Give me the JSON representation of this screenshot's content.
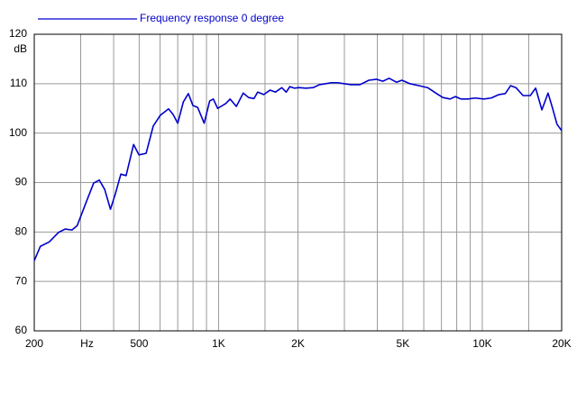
{
  "chart_data": {
    "type": "line",
    "x_scale": "log",
    "y_label": "dB",
    "legend": "top-left",
    "grid": true,
    "xlim": [
      200,
      20000
    ],
    "ylim": [
      60,
      120
    ],
    "xticks": [
      200,
      {
        "value": 300,
        "label": "Hz"
      },
      500,
      {
        "value": 1000,
        "label": "1K"
      },
      {
        "value": 2000,
        "label": "2K"
      },
      {
        "value": 5000,
        "label": "5K"
      },
      {
        "value": 10000,
        "label": "10K"
      },
      {
        "value": 20000,
        "label": "20K"
      }
    ],
    "xgrid": [
      400,
      600,
      700,
      800,
      900,
      1500,
      3000,
      4000,
      6000,
      7000,
      8000,
      9000,
      15000
    ],
    "yticks": [
      60,
      70,
      80,
      90,
      100,
      110,
      120
    ],
    "series": [
      {
        "name": "Frequency response 0 degree",
        "color": "#0000cc",
        "x": [
          200,
          211,
          228,
          247,
          262,
          278,
          291,
          313,
          336,
          353,
          370,
          389,
          406,
          426,
          446,
          476,
          499,
          531,
          565,
          601,
          646,
          672,
          700,
          735,
          768,
          799,
          833,
          882,
          925,
          955,
          992,
          1065,
          1106,
          1168,
          1240,
          1300,
          1363,
          1407,
          1484,
          1568,
          1643,
          1736,
          1805,
          1863,
          1938,
          2015,
          2145,
          2282,
          2413,
          2552,
          2674,
          2826,
          2988,
          3180,
          3436,
          3715,
          3972,
          4196,
          4434,
          4727,
          4956,
          5317,
          5746,
          6205,
          6712,
          7089,
          7548,
          7913,
          8298,
          8827,
          9389,
          10152,
          10801,
          11570,
          12222,
          12806,
          13418,
          14276,
          15205,
          15937,
          16829,
          17759,
          18481,
          19201,
          20000
        ],
        "values": [
          74.2,
          77.1,
          78.0,
          79.9,
          80.6,
          80.4,
          81.3,
          85.7,
          89.9,
          90.5,
          88.6,
          84.6,
          87.7,
          91.7,
          91.4,
          97.7,
          95.6,
          95.9,
          101.4,
          103.6,
          104.9,
          103.8,
          102.0,
          106.3,
          108.0,
          105.6,
          105.2,
          102.0,
          106.5,
          106.9,
          105.0,
          106.0,
          106.9,
          105.4,
          108.1,
          107.2,
          107.0,
          108.3,
          107.8,
          108.7,
          108.3,
          109.2,
          108.3,
          109.4,
          109.1,
          109.2,
          109.1,
          109.2,
          109.8,
          110.0,
          110.2,
          110.2,
          110.0,
          109.8,
          109.8,
          110.7,
          110.9,
          110.5,
          111.1,
          110.3,
          110.7,
          110.0,
          109.6,
          109.2,
          108.0,
          107.2,
          106.9,
          107.4,
          106.9,
          106.9,
          107.1,
          106.9,
          107.1,
          107.8,
          108.0,
          109.6,
          109.2,
          107.6,
          107.6,
          109.1,
          104.7,
          108.1,
          105.0,
          101.8,
          100.5
        ]
      }
    ]
  }
}
